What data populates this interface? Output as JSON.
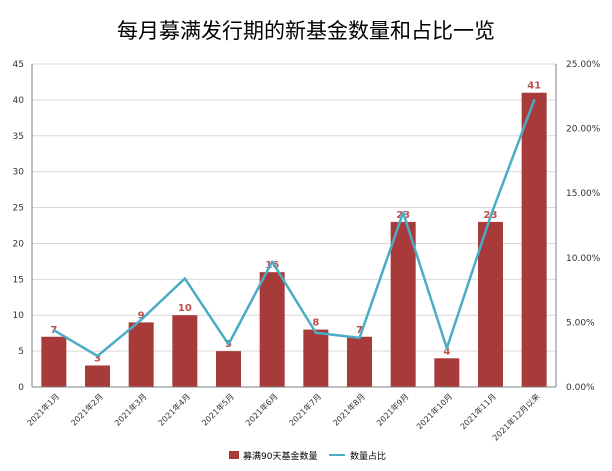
{
  "chart_data": {
    "type": "bar",
    "title": "每月募满发行期的新基金数量和占比一览",
    "categories": [
      "2021年1月",
      "2021年2月",
      "2021年3月",
      "2021年4月",
      "2021年5月",
      "2021年6月",
      "2021年7月",
      "2021年8月",
      "2021年9月",
      "2021年10月",
      "2021年11月",
      "2021年12月以来"
    ],
    "series": [
      {
        "name": "募满90天基金数量",
        "type": "bar",
        "axis": "left",
        "color": "#A93A3A",
        "values": [
          7,
          3,
          9,
          10,
          5,
          16,
          8,
          7,
          23,
          4,
          23,
          41
        ],
        "data_labels": [
          "7",
          "3",
          "9",
          "10",
          "5",
          "16",
          "8",
          "7",
          "23",
          "4",
          "23",
          "41"
        ]
      },
      {
        "name": "数量占比",
        "type": "line",
        "axis": "right",
        "color": "#4BACC6",
        "values": [
          4.4,
          2.4,
          5.2,
          8.4,
          3.3,
          9.7,
          4.2,
          3.8,
          13.5,
          3.0,
          13.2,
          22.2
        ]
      }
    ],
    "y_left": {
      "min": 0,
      "max": 45,
      "step": 5,
      "tick_labels": [
        "0",
        "5",
        "10",
        "15",
        "20",
        "25",
        "30",
        "35",
        "40",
        "45"
      ]
    },
    "y_right": {
      "min": 0,
      "max": 25,
      "step": 5,
      "tick_labels": [
        "0.00%",
        "5.00%",
        "10.00%",
        "15.00%",
        "20.00%",
        "25.00%"
      ]
    },
    "grid": true,
    "legend_position": "bottom"
  }
}
